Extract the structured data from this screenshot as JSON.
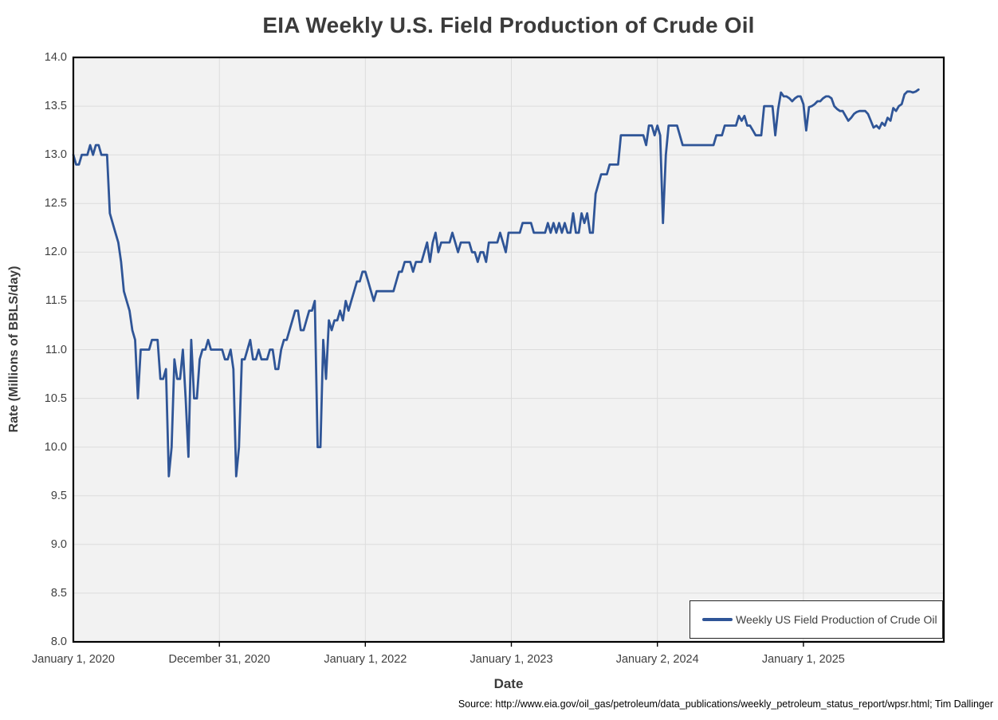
{
  "title": "EIA Weekly U.S. Field Production of Crude Oil",
  "x_axis": {
    "title": "Date",
    "tick_labels": [
      "January 1, 2020",
      "December 31, 2020",
      "January 1, 2022",
      "January 1, 2023",
      "January 2, 2024",
      "January 1, 2025"
    ]
  },
  "y_axis": {
    "title": "Rate (Millions of BBLS/day)",
    "tick_labels": [
      "14.0",
      "13.5",
      "13.0",
      "12.5",
      "12.0",
      "11.5",
      "11.0",
      "10.5",
      "10.0",
      "9.5",
      "9.0",
      "8.5",
      "8.0"
    ]
  },
  "legend": {
    "label": "Weekly US Field Production of Crude Oil"
  },
  "source_note": "Source: http://www.eia.gov/oil_gas/petroleum/data_publications/weekly_petroleum_status_report/wpsr.html; Tim Dallinger",
  "colors": {
    "line": "#2F5597",
    "plot_background": "#F2F2F2",
    "gridline": "#DCDCDC",
    "axis_border": "#000000",
    "label_text": "#404040",
    "title_text": "#3B3B3B"
  },
  "chart_data": {
    "type": "line",
    "title": "EIA Weekly U.S. Field Production of Crude Oil",
    "xlabel": "Date",
    "ylabel": "Rate (Millions of BBLS/day)",
    "ylim": [
      8.0,
      14.0
    ],
    "y_gridline_step": 0.5,
    "grid": true,
    "legend_position": "inside-bottom-right",
    "x_tick_labels": [
      "January 1, 2020",
      "December 31, 2020",
      "January 1, 2022",
      "January 1, 2023",
      "January 2, 2024",
      "January 1, 2025"
    ],
    "x_tick_weeks": [
      0,
      52,
      104,
      156,
      208,
      260
    ],
    "x_domain_weeks": [
      0,
      310
    ],
    "x_unit": "weeks since week of January 1, 2020 (weekly data)",
    "series": [
      {
        "name": "Weekly US Field Production of Crude Oil",
        "color": "#2F5597",
        "values": [
          13.0,
          12.9,
          12.9,
          13.0,
          13.0,
          13.0,
          13.1,
          13.0,
          13.1,
          13.1,
          13.0,
          13.0,
          13.0,
          12.4,
          12.3,
          12.2,
          12.1,
          11.9,
          11.6,
          11.5,
          11.4,
          11.2,
          11.1,
          10.5,
          11.0,
          11.0,
          11.0,
          11.0,
          11.1,
          11.1,
          11.1,
          10.7,
          10.7,
          10.8,
          9.7,
          10.0,
          10.9,
          10.7,
          10.7,
          11.0,
          10.5,
          9.9,
          11.1,
          10.5,
          10.5,
          10.9,
          11.0,
          11.0,
          11.1,
          11.0,
          11.0,
          11.0,
          11.0,
          11.0,
          10.9,
          10.9,
          11.0,
          10.8,
          9.7,
          10.0,
          10.9,
          10.9,
          11.0,
          11.1,
          10.9,
          10.9,
          11.0,
          10.9,
          10.9,
          10.9,
          11.0,
          11.0,
          10.8,
          10.8,
          11.0,
          11.1,
          11.1,
          11.2,
          11.3,
          11.4,
          11.4,
          11.2,
          11.2,
          11.3,
          11.4,
          11.4,
          11.5,
          10.0,
          10.0,
          11.1,
          10.7,
          11.3,
          11.2,
          11.3,
          11.3,
          11.4,
          11.3,
          11.5,
          11.4,
          11.5,
          11.6,
          11.7,
          11.7,
          11.8,
          11.8,
          11.7,
          11.6,
          11.5,
          11.6,
          11.6,
          11.6,
          11.6,
          11.6,
          11.6,
          11.6,
          11.7,
          11.8,
          11.8,
          11.9,
          11.9,
          11.9,
          11.8,
          11.9,
          11.9,
          11.9,
          12.0,
          12.1,
          11.9,
          12.1,
          12.2,
          12.0,
          12.1,
          12.1,
          12.1,
          12.1,
          12.2,
          12.1,
          12.0,
          12.1,
          12.1,
          12.1,
          12.1,
          12.0,
          12.0,
          11.9,
          12.0,
          12.0,
          11.9,
          12.1,
          12.1,
          12.1,
          12.1,
          12.2,
          12.1,
          12.0,
          12.2,
          12.2,
          12.2,
          12.2,
          12.2,
          12.3,
          12.3,
          12.3,
          12.3,
          12.2,
          12.2,
          12.2,
          12.2,
          12.2,
          12.3,
          12.2,
          12.3,
          12.2,
          12.3,
          12.2,
          12.3,
          12.2,
          12.2,
          12.4,
          12.2,
          12.2,
          12.4,
          12.3,
          12.4,
          12.2,
          12.2,
          12.6,
          12.7,
          12.8,
          12.8,
          12.8,
          12.9,
          12.9,
          12.9,
          12.9,
          13.2,
          13.2,
          13.2,
          13.2,
          13.2,
          13.2,
          13.2,
          13.2,
          13.2,
          13.1,
          13.3,
          13.3,
          13.2,
          13.3,
          13.2,
          12.3,
          13.0,
          13.3,
          13.3,
          13.3,
          13.3,
          13.2,
          13.1,
          13.1,
          13.1,
          13.1,
          13.1,
          13.1,
          13.1,
          13.1,
          13.1,
          13.1,
          13.1,
          13.1,
          13.2,
          13.2,
          13.2,
          13.3,
          13.3,
          13.3,
          13.3,
          13.3,
          13.4,
          13.35,
          13.4,
          13.3,
          13.3,
          13.25,
          13.2,
          13.2,
          13.2,
          13.5,
          13.5,
          13.5,
          13.5,
          13.2,
          13.47,
          13.64,
          13.6,
          13.6,
          13.58,
          13.55,
          13.58,
          13.6,
          13.6,
          13.52,
          13.25,
          13.49,
          13.5,
          13.52,
          13.55,
          13.55,
          13.58,
          13.6,
          13.6,
          13.58,
          13.5,
          13.47,
          13.45,
          13.45,
          13.4,
          13.35,
          13.38,
          13.42,
          13.44,
          13.45,
          13.45,
          13.45,
          13.42,
          13.35,
          13.28,
          13.3,
          13.27,
          13.33,
          13.3,
          13.38,
          13.35,
          13.48,
          13.45,
          13.5,
          13.52,
          13.62,
          13.65,
          13.65,
          13.64,
          13.65,
          13.67
        ]
      }
    ]
  }
}
